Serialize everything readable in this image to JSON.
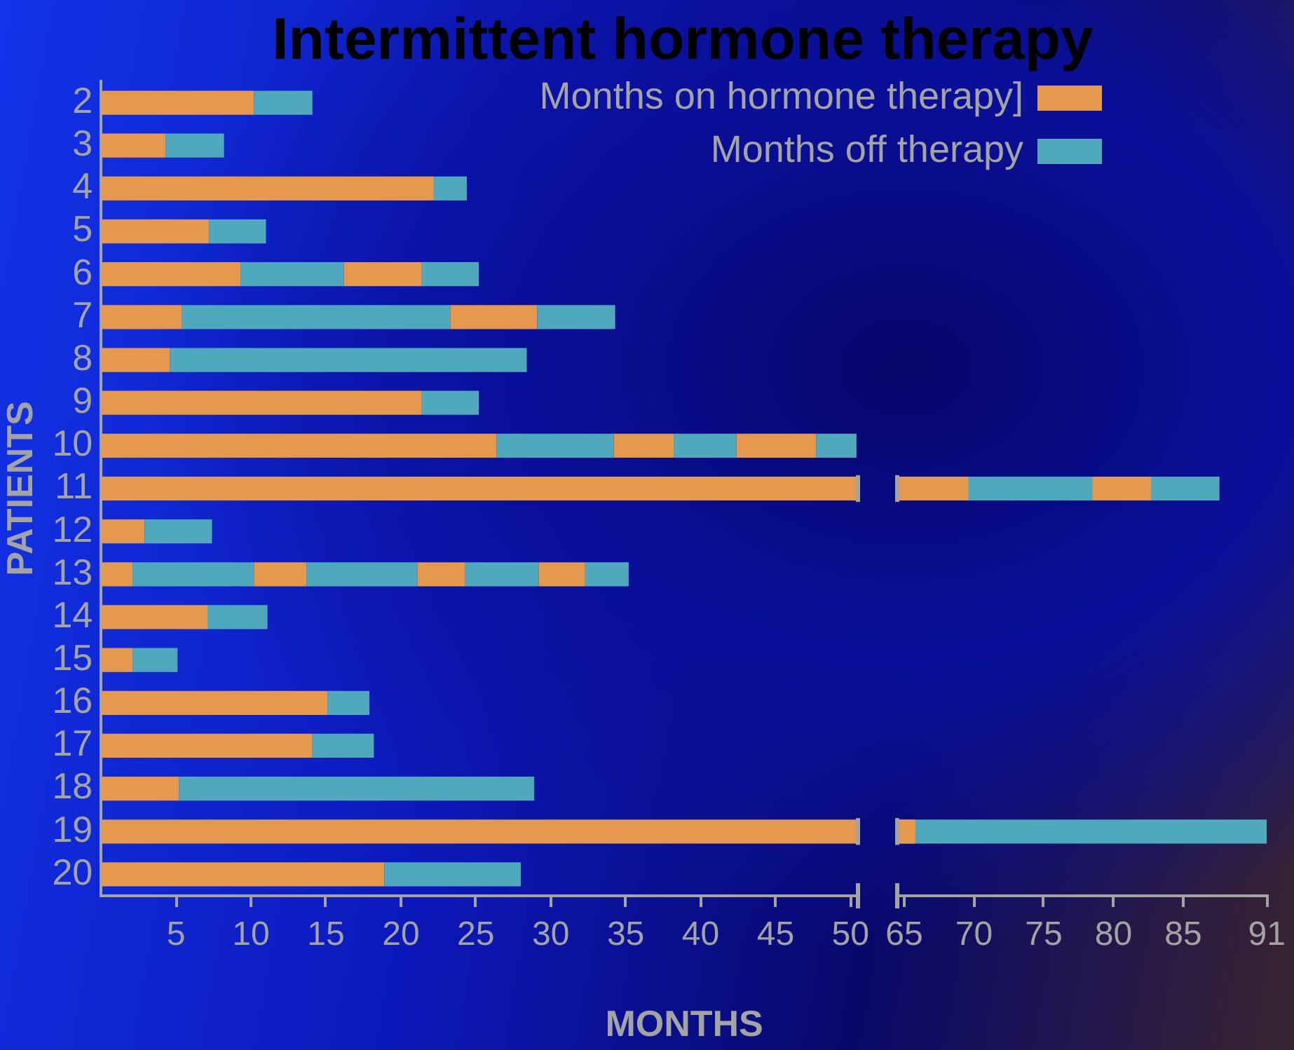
{
  "chart_data": [
    {
      "type": "bar",
      "orientation": "horizontal",
      "stacked": true,
      "title": "Intermittent hormone therapy",
      "xlabel": "MONTHS",
      "ylabel": "PATIENTS",
      "legend": "top right",
      "categories": [
        "2",
        "3",
        "4",
        "5",
        "6",
        "7",
        "8",
        "9",
        "10",
        "11",
        "12",
        "13",
        "14",
        "15",
        "16",
        "17",
        "18",
        "19",
        "20"
      ],
      "xlim": [
        0,
        50.5
      ],
      "xticks": [
        5,
        10,
        15,
        20,
        25,
        30,
        35,
        40,
        45,
        50
      ],
      "series": [
        {
          "name": "Months on hormone therapy]",
          "color": "#e5994f",
          "values": [
            10.2,
            4.3,
            22.2,
            7.2,
            9.3,
            5.4,
            4.6,
            21.4,
            26.4,
            50.5,
            2.9,
            2.1,
            7.1,
            2.1,
            15.1,
            14.1,
            5.2,
            50.5,
            18.9
          ]
        },
        {
          "name": "Months off therapy",
          "color": "#50a8bd",
          "values": [
            3.9,
            3.9,
            2.2,
            3.8,
            6.9,
            17.9,
            23.8,
            3.8,
            7.8,
            null,
            4.5,
            8.1,
            4.0,
            3.0,
            2.8,
            4.1,
            23.7,
            null,
            9.1
          ]
        },
        {
          "color": "#e5994f",
          "values": [
            null,
            null,
            null,
            null,
            5.2,
            5.8,
            null,
            null,
            4.0,
            null,
            null,
            3.5,
            null,
            null,
            null,
            null,
            null,
            null,
            null
          ]
        },
        {
          "color": "#50a8bd",
          "values": [
            null,
            null,
            null,
            null,
            3.8,
            5.2,
            null,
            null,
            4.2,
            null,
            null,
            7.4,
            null,
            null,
            null,
            null,
            null,
            null,
            null
          ]
        },
        {
          "color": "#e5994f",
          "values": [
            null,
            null,
            null,
            null,
            null,
            null,
            null,
            null,
            5.3,
            null,
            null,
            3.2,
            null,
            null,
            null,
            null,
            null,
            null,
            null
          ]
        },
        {
          "color": "#50a8bd",
          "values": [
            null,
            null,
            null,
            null,
            null,
            null,
            null,
            null,
            2.7,
            null,
            null,
            4.9,
            null,
            null,
            null,
            null,
            null,
            null,
            null
          ]
        },
        {
          "color": "#e5994f",
          "values": [
            null,
            null,
            null,
            null,
            null,
            null,
            null,
            null,
            null,
            null,
            null,
            3.1,
            null,
            null,
            null,
            null,
            null,
            null,
            null
          ]
        },
        {
          "color": "#50a8bd",
          "values": [
            null,
            null,
            null,
            null,
            null,
            null,
            null,
            null,
            null,
            null,
            null,
            2.9,
            null,
            null,
            null,
            null,
            null,
            null,
            null
          ]
        }
      ]
    },
    {
      "type": "bar",
      "orientation": "horizontal",
      "tick_labels": "x",
      "categories": [
        "2",
        "3",
        "4",
        "5",
        "6",
        "7",
        "8",
        "9",
        "10",
        "11",
        "12",
        "13",
        "14",
        "15",
        "16",
        "17",
        "18",
        "19",
        "20"
      ],
      "xlim": [
        64.5,
        91
      ],
      "xticks": [
        65,
        70,
        75,
        80,
        85,
        91
      ],
      "series": [
        {
          "color": "#50a8bd",
          "values": [
            null,
            null,
            null,
            null,
            null,
            null,
            null,
            null,
            null,
            87.6,
            null,
            null,
            null,
            null,
            null,
            null,
            null,
            91,
            null
          ]
        },
        {
          "color": "#e5994f",
          "values": [
            null,
            null,
            null,
            null,
            null,
            null,
            null,
            null,
            null,
            82.7,
            null,
            null,
            null,
            null,
            null,
            null,
            null,
            null,
            null
          ]
        },
        {
          "color": "#50a8bd",
          "values": [
            null,
            null,
            null,
            null,
            null,
            null,
            null,
            null,
            null,
            78.5,
            null,
            null,
            null,
            null,
            null,
            null,
            null,
            null,
            null
          ]
        },
        {
          "color": "#e5994f",
          "values": [
            null,
            null,
            null,
            null,
            null,
            null,
            null,
            null,
            null,
            69.6,
            null,
            null,
            null,
            null,
            null,
            null,
            null,
            65.8,
            null
          ]
        }
      ]
    }
  ]
}
